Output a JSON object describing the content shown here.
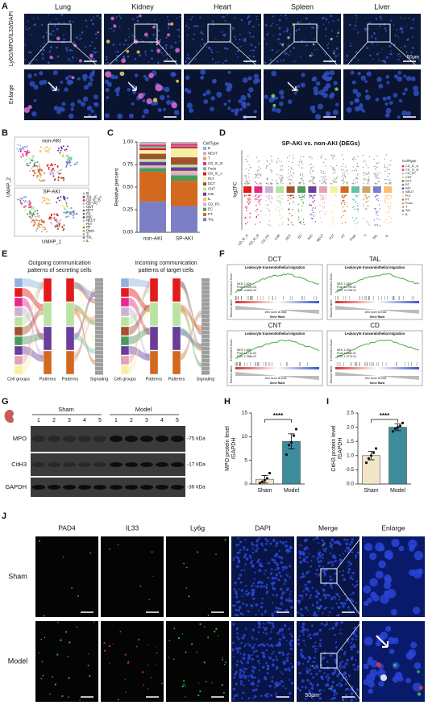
{
  "panel_a": {
    "label": "A",
    "columns": [
      "Lung",
      "Kidney",
      "Heart",
      "Spleen",
      "Liver"
    ],
    "stain": "Ly6G/MPO/IL33/DAPI",
    "enlarge": "Enlarge",
    "scale": "50μm"
  },
  "panel_b": {
    "label": "B",
    "plots": [
      "non-AKI",
      "SP-AKI"
    ],
    "legend": [
      "B",
      "TAL_IC_A",
      "CD_IC_B",
      "CD_PC",
      "CNT",
      "DCT",
      "EC",
      "IntC",
      "NEUT",
      "PLT",
      "PT",
      "Podo",
      "T",
      "TAL",
      "tL"
    ],
    "x_label": "UMAP_1",
    "y_label": "UMAP_2"
  },
  "panel_d": {
    "label": "D",
    "title": "SP-AKI vs. non-AKI (DEGs)",
    "y_label": "log2FC",
    "categories": [
      "CD_IC_A",
      "CD_IC_B",
      "CD_PC",
      "CNT",
      "DCT",
      "EC",
      "IntC",
      "NEUT",
      "PLT",
      "PT",
      "Podo",
      "T",
      "TAL",
      "tL"
    ],
    "legend_title": "CellType"
  },
  "panel_e": {
    "label": "E",
    "plots": [
      {
        "title": [
          "Outgoing communication",
          "patterns of secreting cells"
        ],
        "axis_labels": [
          "Cell groups",
          "Patterns",
          "Patterns",
          "Signaling"
        ]
      },
      {
        "title": [
          "Incoming communication",
          "patterns of target cells"
        ],
        "axis_labels": [
          "Cell groups",
          "Patterns",
          "Patterns",
          "Signaling"
        ]
      }
    ]
  },
  "panel_f": {
    "label": "F",
    "y_labels": [
      "Enrichment Score",
      "Ranked metric"
    ],
    "x_label": "Gene Rank",
    "plots": [
      {
        "cell": "DCT",
        "title": "Leukocyte transendothelial migration",
        "stats": [
          "NES: 1.825",
          "Pval: 6.000e-03",
          "FDR: 4.661e-03"
        ],
        "zero_score": "Zero score at 2886"
      },
      {
        "cell": "TAL",
        "title": "Leukocyte transendothelial migration",
        "stats": [
          "NES: 1.548",
          "Pval: 4.279e-02",
          "FDR: 3.175e-01"
        ],
        "zero_score": "Zero score at 2464"
      },
      {
        "cell": "CNT",
        "title": "Leukocyte transendothelial migration",
        "stats": [
          "NES: 1.896",
          "Pval: 1.271e-03",
          "FDR: 1.266e-02"
        ],
        "zero_score": "Zero score at 3256"
      },
      {
        "cell": "CD",
        "title": "Leukocyte transendothelial migration",
        "stats": [
          "NES: 1.591",
          "Pval: 3.058e-02",
          "FDR: 1.377e-01"
        ],
        "zero_score": "Zero score at 2559"
      }
    ]
  },
  "panel_g": {
    "label": "G",
    "groups": [
      "Sham",
      "Model"
    ],
    "lanes": [
      1,
      2,
      3,
      4,
      5
    ],
    "rows": [
      "MPO",
      "CitH3",
      "GAPDH"
    ],
    "sizes": [
      "-75 kDa",
      "-17 kDa",
      "-36 kDa"
    ]
  },
  "panel_j": {
    "label": "J",
    "columns": [
      "PAD4",
      "IL33",
      "Ly6g",
      "DAPI",
      "Merge",
      "Enlarge"
    ],
    "rows": [
      "Sham",
      "Model"
    ],
    "scale": "50μm"
  },
  "chart_data": [
    {
      "type": "stacked_bar",
      "panel_label": "C",
      "y_label": "Relative percent",
      "categories": [
        "non-AKI",
        "SP-AKI"
      ],
      "legend_title": "CellType",
      "ylim": [
        0,
        1
      ],
      "yticks": [
        {
          "value": 0,
          "label": "0.00"
        },
        0.25,
        {
          "value": 0.5,
          "label": "0.50"
        },
        0.75,
        {
          "value": 1,
          "label": "1.00"
        }
      ],
      "series": [
        {
          "name": "B",
          "color": "#8fb3dc",
          "values": [
            0.01,
            0.005
          ]
        },
        {
          "name": "NEUT",
          "color": "#e4a2b4",
          "values": [
            0.01,
            0.005
          ]
        },
        {
          "name": "T",
          "color": "#c9a86b",
          "values": [
            0.01,
            0.01
          ]
        },
        {
          "name": "CD_IC_B",
          "color": "#e7298a",
          "values": [
            0.02,
            0.02
          ]
        },
        {
          "name": "Podo",
          "color": "#66c2a5",
          "values": [
            0.02,
            0.01
          ]
        },
        {
          "name": "CD_IC_A",
          "color": "#e31a1c",
          "values": [
            0.02,
            0.02
          ]
        },
        {
          "name": "PLT",
          "color": "#f6efa6",
          "values": [
            0.04,
            0.1
          ]
        },
        {
          "name": "DCT",
          "color": "#a0522d",
          "values": [
            0.06,
            0.08
          ]
        },
        {
          "name": "CNT",
          "color": "#b9e3a0",
          "values": [
            0.03,
            0.03
          ]
        },
        {
          "name": "IntC",
          "color": "#6a3d9a",
          "values": [
            0.04,
            0.04
          ]
        },
        {
          "name": "tL",
          "color": "#fdbf6f",
          "values": [
            0.01,
            0.02
          ]
        },
        {
          "name": "CD_PC",
          "color": "#cab2d6",
          "values": [
            0.02,
            0.03
          ]
        },
        {
          "name": "EC",
          "color": "#4c9a5b",
          "values": [
            0.04,
            0.06
          ]
        },
        {
          "name": "PT",
          "color": "#d2691e",
          "values": [
            0.33,
            0.28
          ]
        },
        {
          "name": "TAL",
          "color": "#7d7fc6",
          "values": [
            0.34,
            0.29
          ]
        }
      ]
    },
    {
      "type": "bar",
      "panel_label": "H",
      "y_label": [
        "MPO protein level",
        "/GAPDH"
      ],
      "categories": [
        "Sham",
        "Model"
      ],
      "colors": [
        "#f3e6c8",
        "#3d8c9c"
      ],
      "values": [
        1.0,
        9.0
      ],
      "errors": [
        0.8,
        1.6
      ],
      "points": [
        [
          0.2,
          0.5,
          0.8,
          1.2,
          2.3
        ],
        [
          6.2,
          8.2,
          8.8,
          10.2,
          11.6
        ]
      ],
      "significance": "****",
      "ylim": [
        0,
        15
      ],
      "yticks": [
        0,
        5,
        10,
        15
      ]
    },
    {
      "type": "bar",
      "panel_label": "I",
      "y_label": [
        "CitH3 protein level",
        "/GAPDH"
      ],
      "categories": [
        "Sham",
        "Model"
      ],
      "colors": [
        "#f3e6c8",
        "#3d8c9c"
      ],
      "values": [
        1.0,
        2.0
      ],
      "errors": [
        0.15,
        0.12
      ],
      "points": [
        [
          0.75,
          0.9,
          1.0,
          1.1,
          1.25
        ],
        [
          1.85,
          1.95,
          2.0,
          2.05,
          2.15
        ]
      ],
      "significance": "****",
      "ylim": [
        0,
        2.5
      ],
      "yticks": [
        {
          "value": 0,
          "label": "0.0"
        },
        0.5,
        {
          "value": 1,
          "label": "1.0"
        },
        1.5,
        {
          "value": 2,
          "label": "2.0"
        },
        2.5
      ]
    }
  ]
}
